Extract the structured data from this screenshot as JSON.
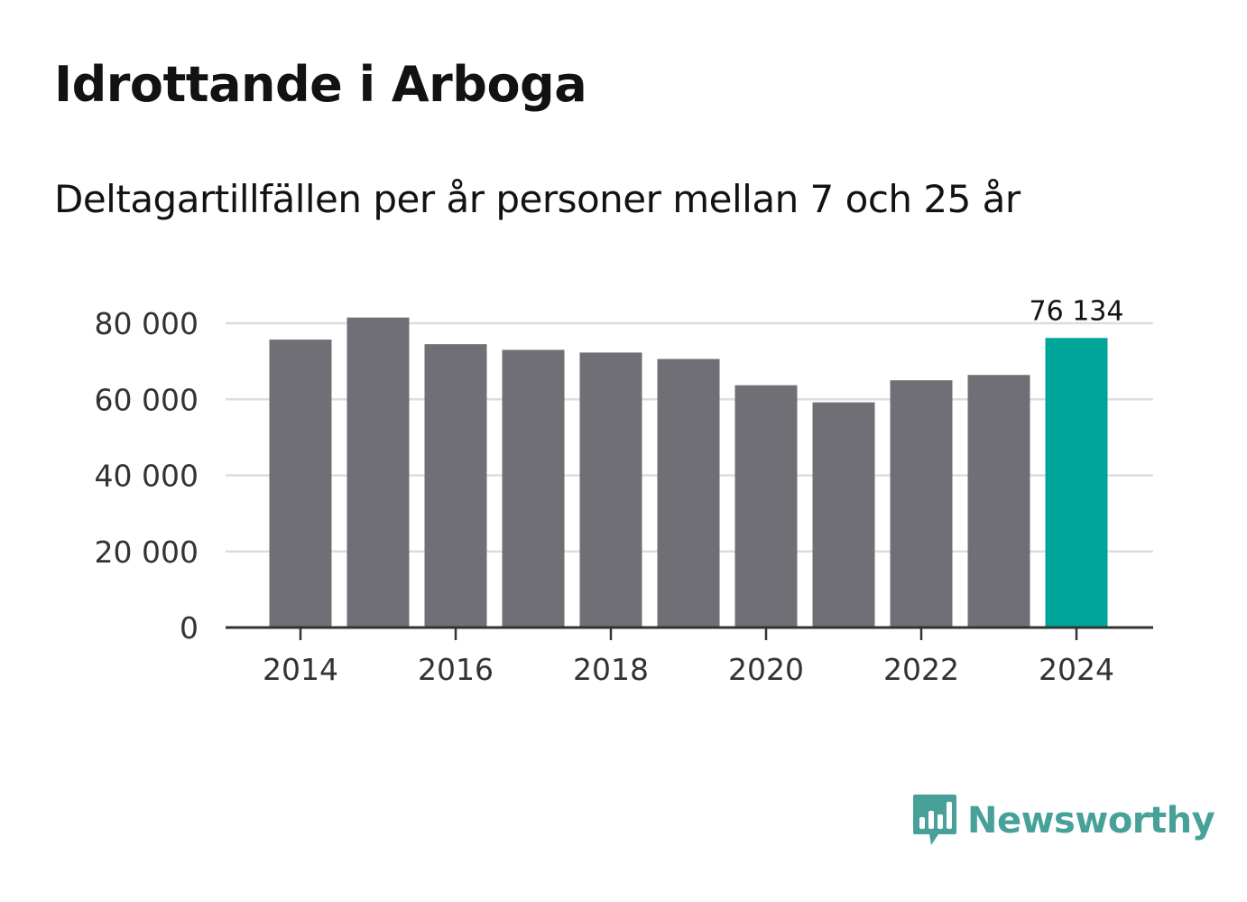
{
  "title": "Idrottande i Arboga",
  "subtitle": "Deltagartillfällen per år personer mellan 7 och 25 år",
  "brand": {
    "name": "Newsworthy",
    "color": "#47a199",
    "icon": "newsworthy-logo-icon"
  },
  "colors": {
    "bar": "#706f75",
    "highlight": "#00a599",
    "grid": "#dddddd",
    "axis": "#333333"
  },
  "chart_data": {
    "type": "bar",
    "title": "Idrottande i Arboga",
    "subtitle": "Deltagartillfällen per år personer mellan 7 och 25 år",
    "xlabel": "",
    "ylabel": "",
    "categories": [
      "2014",
      "2015",
      "2016",
      "2017",
      "2018",
      "2019",
      "2020",
      "2021",
      "2022",
      "2023",
      "2024"
    ],
    "values": [
      75700,
      81500,
      74500,
      73000,
      72300,
      70600,
      63700,
      59200,
      65000,
      66400,
      76134
    ],
    "ylim": [
      0,
      80000
    ],
    "yticks": [
      0,
      20000,
      40000,
      60000,
      80000
    ],
    "ytick_labels": [
      "0",
      "20 000",
      "40 000",
      "60 000",
      "80 000"
    ],
    "xtick_labels": [
      "2014",
      "2016",
      "2018",
      "2020",
      "2022",
      "2024"
    ],
    "highlight": {
      "category": "2024",
      "label": "76 134"
    },
    "grid": true
  }
}
